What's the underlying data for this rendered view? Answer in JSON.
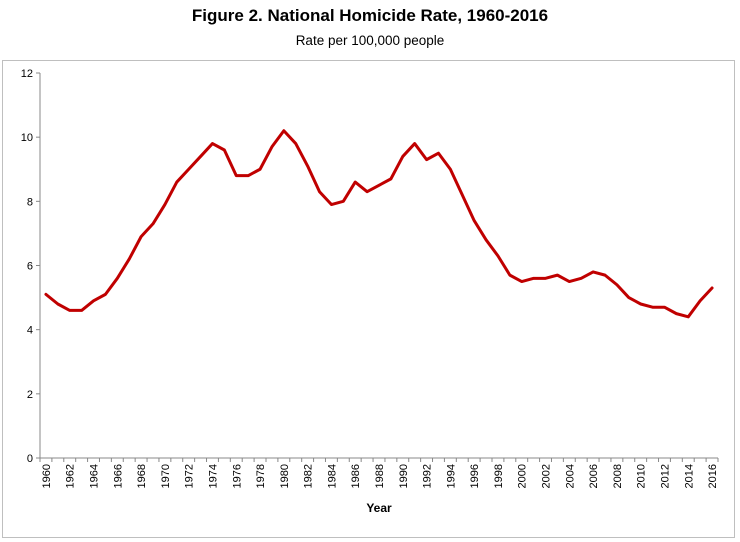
{
  "chart_data": {
    "type": "line",
    "title": "Figure 2. National Homicide Rate, 1960-2016",
    "subtitle": "Rate per 100,000 people",
    "xlabel": "Year",
    "ylabel": "",
    "ylim": [
      0,
      12
    ],
    "yticks": [
      0,
      2,
      4,
      6,
      8,
      10,
      12
    ],
    "xticks": [
      1960,
      1962,
      1964,
      1966,
      1968,
      1970,
      1972,
      1974,
      1976,
      1978,
      1980,
      1982,
      1984,
      1986,
      1988,
      1990,
      1992,
      1994,
      1996,
      1998,
      2000,
      2002,
      2004,
      2006,
      2008,
      2010,
      2012,
      2014,
      2016
    ],
    "grid": false,
    "legend": "none",
    "series_color": "#c00000",
    "x": [
      1960,
      1961,
      1962,
      1963,
      1964,
      1965,
      1966,
      1967,
      1968,
      1969,
      1970,
      1971,
      1972,
      1973,
      1974,
      1975,
      1976,
      1977,
      1978,
      1979,
      1980,
      1981,
      1982,
      1983,
      1984,
      1985,
      1986,
      1987,
      1988,
      1989,
      1990,
      1991,
      1992,
      1993,
      1994,
      1995,
      1996,
      1997,
      1998,
      1999,
      2000,
      2001,
      2002,
      2003,
      2004,
      2005,
      2006,
      2007,
      2008,
      2009,
      2010,
      2011,
      2012,
      2013,
      2014,
      2015,
      2016
    ],
    "series": [
      {
        "values": [
          5.1,
          4.8,
          4.6,
          4.6,
          4.9,
          5.1,
          5.6,
          6.2,
          6.9,
          7.3,
          7.9,
          8.6,
          9.0,
          9.4,
          9.8,
          9.6,
          8.8,
          8.8,
          9.0,
          9.7,
          10.2,
          9.8,
          9.1,
          8.3,
          7.9,
          8.0,
          8.6,
          8.3,
          8.5,
          8.7,
          9.4,
          9.8,
          9.3,
          9.5,
          9.0,
          8.2,
          7.4,
          6.8,
          6.3,
          5.7,
          5.5,
          5.6,
          5.6,
          5.7,
          5.5,
          5.6,
          5.8,
          5.7,
          5.4,
          5.0,
          4.8,
          4.7,
          4.7,
          4.5,
          4.4,
          4.9,
          5.3
        ]
      }
    ]
  }
}
